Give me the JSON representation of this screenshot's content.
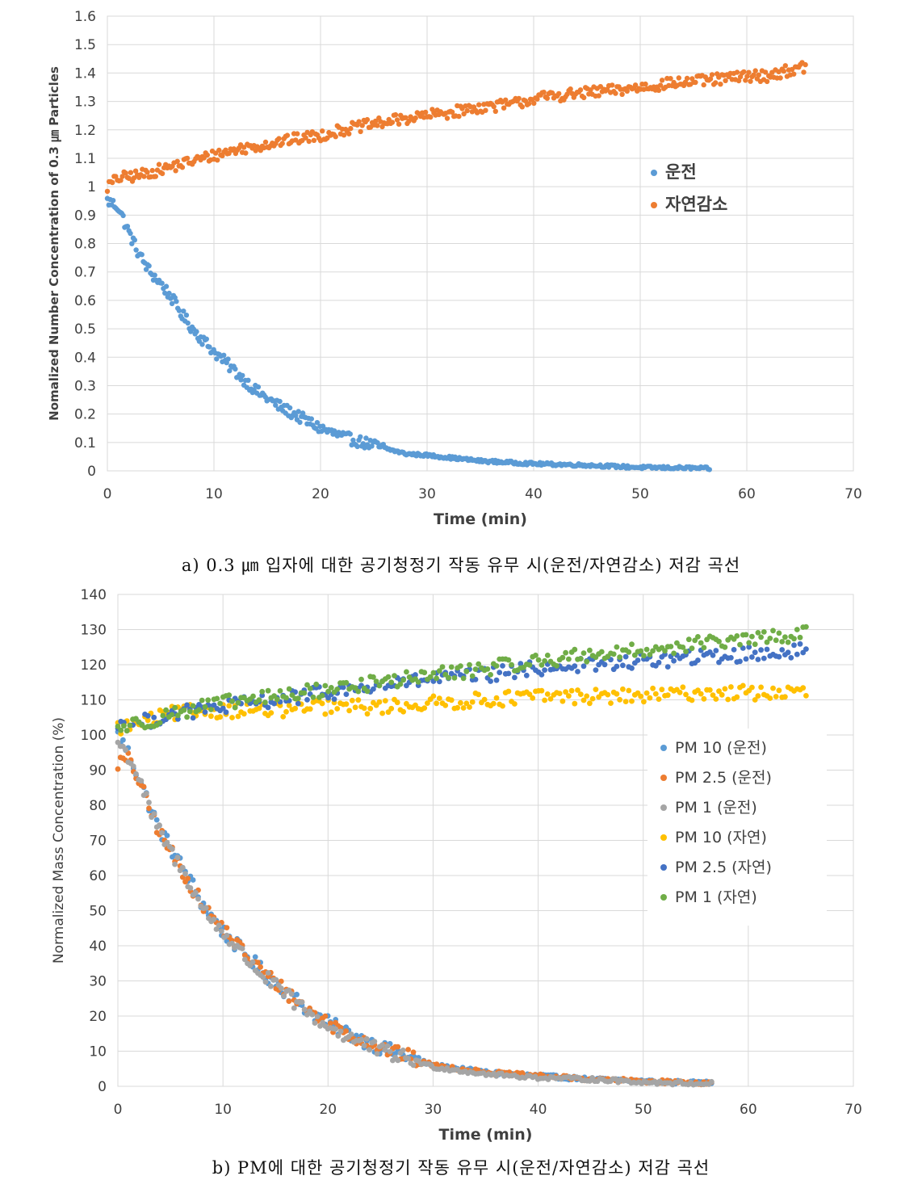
{
  "colors": {
    "series_a": [
      "#5b9bd5",
      "#ed7d31"
    ],
    "series_b": [
      "#5b9bd5",
      "#ed7d31",
      "#a5a5a5",
      "#ffc000",
      "#4472c4",
      "#70ad47"
    ],
    "grid": "#d9d9d9"
  },
  "captions": {
    "a": "a) 0.3 ㎛ 입자에 대한 공기청정기 작동 유무 시(운전/자연감소) 저감 곡선",
    "b": "b) PM에 대한 공기청정기 작동 유무 시(운전/자연감소) 저감 곡선"
  },
  "chart_data": [
    {
      "type": "scatter",
      "xlabel": "Time (min)",
      "ylabel": "Nomalized Number Concentration of 0.3 ㎛ Particles",
      "xlim": [
        0,
        70
      ],
      "ylim": [
        0,
        1.6
      ],
      "xticks": [
        "0",
        "10",
        "20",
        "30",
        "40",
        "50",
        "60",
        "70"
      ],
      "yticks": [
        "0",
        "0.1",
        "0.2",
        "0.3",
        "0.4",
        "0.5",
        "0.6",
        "0.7",
        "0.8",
        "0.9",
        "1",
        "1.1",
        "1.2",
        "1.3",
        "1.4",
        "1.5",
        "1.6"
      ],
      "grid": true,
      "legend_position": "right-upper",
      "series": [
        {
          "name": "운전",
          "x": [
            0,
            1,
            2,
            3,
            4,
            5,
            6,
            7,
            8,
            9,
            10,
            12,
            14,
            16,
            18,
            20,
            22,
            25,
            28,
            30,
            35,
            40,
            45,
            50,
            55,
            56.5
          ],
          "y": [
            0.95,
            0.93,
            0.84,
            0.76,
            0.7,
            0.66,
            0.61,
            0.55,
            0.5,
            0.46,
            0.42,
            0.35,
            0.28,
            0.23,
            0.19,
            0.15,
            0.12,
            0.09,
            0.06,
            0.055,
            0.035,
            0.025,
            0.02,
            0.012,
            0.01,
            0.008
          ]
        },
        {
          "name": "자연감소",
          "x": [
            0,
            1,
            3,
            5,
            7,
            10,
            12,
            15,
            18,
            20,
            22,
            25,
            28,
            30,
            32,
            35,
            38,
            40,
            42,
            45,
            48,
            50,
            52,
            55,
            58,
            60,
            62,
            64,
            65.5
          ],
          "y": [
            1.0,
            1.03,
            1.04,
            1.06,
            1.08,
            1.11,
            1.13,
            1.15,
            1.17,
            1.18,
            1.2,
            1.22,
            1.24,
            1.25,
            1.26,
            1.28,
            1.29,
            1.31,
            1.32,
            1.33,
            1.34,
            1.35,
            1.36,
            1.37,
            1.38,
            1.39,
            1.39,
            1.41,
            1.42
          ]
        }
      ]
    },
    {
      "type": "scatter",
      "xlabel": "Time (min)",
      "ylabel": "Normalized Mass Concentration (%)",
      "xlim": [
        0,
        70
      ],
      "ylim": [
        0,
        140
      ],
      "xticks": [
        "0",
        "10",
        "20",
        "30",
        "40",
        "50",
        "60",
        "70"
      ],
      "yticks": [
        "0",
        "10",
        "20",
        "30",
        "40",
        "50",
        "60",
        "70",
        "80",
        "90",
        "100",
        "110",
        "120",
        "130",
        "140"
      ],
      "grid": true,
      "legend_position": "right-middle",
      "series": [
        {
          "name": "PM 10 (운전)",
          "x": [
            0,
            1,
            2,
            3,
            4,
            5,
            6,
            7,
            8,
            9,
            10,
            12,
            14,
            16,
            18,
            20,
            22,
            25,
            28,
            30,
            35,
            40,
            45,
            50,
            55,
            56.5
          ],
          "y": [
            100,
            95,
            88,
            80,
            73,
            68,
            63,
            58,
            52,
            48,
            44,
            38,
            32,
            27,
            22,
            18,
            15,
            11,
            8,
            6,
            4,
            3,
            2,
            1.5,
            1,
            1
          ]
        },
        {
          "name": "PM 2.5 (운전)",
          "x": [
            0,
            1,
            2,
            3,
            4,
            5,
            6,
            7,
            8,
            9,
            10,
            12,
            14,
            16,
            18,
            20,
            22,
            25,
            28,
            30,
            35,
            40,
            45,
            50,
            55,
            56.5
          ],
          "y": [
            92,
            93,
            87,
            79,
            72,
            67,
            62,
            57,
            52,
            48,
            45,
            38,
            32,
            27,
            22,
            18,
            15,
            11,
            8,
            6,
            4,
            3,
            2,
            1.5,
            1,
            1
          ]
        },
        {
          "name": "PM 1 (운전)",
          "x": [
            0,
            1,
            2,
            3,
            4,
            5,
            6,
            7,
            8,
            9,
            10,
            12,
            14,
            16,
            18,
            20,
            22,
            25,
            28,
            30,
            35,
            40,
            45,
            50,
            55,
            56.5
          ],
          "y": [
            98,
            94,
            88,
            79,
            72,
            67,
            62,
            57,
            51,
            47,
            44,
            37,
            31,
            26,
            21,
            17,
            14,
            10,
            7.5,
            5.5,
            3.5,
            2.5,
            2,
            1.2,
            0.8,
            0.8
          ]
        },
        {
          "name": "PM 10 (자연)",
          "x": [
            0,
            3,
            5,
            8,
            10,
            15,
            20,
            25,
            30,
            35,
            40,
            45,
            50,
            55,
            60,
            65.5
          ],
          "y": [
            102,
            104,
            106,
            107,
            107,
            107,
            108,
            108,
            109,
            110,
            111,
            111,
            111,
            112,
            112,
            112
          ]
        },
        {
          "name": "PM 2.5 (자연)",
          "x": [
            0,
            3,
            5,
            8,
            10,
            15,
            20,
            25,
            30,
            35,
            40,
            45,
            50,
            55,
            60,
            65.5
          ],
          "y": [
            103,
            104,
            106,
            107,
            108,
            110,
            112,
            114,
            116,
            117,
            119,
            120,
            121,
            122,
            123,
            124
          ]
        },
        {
          "name": "PM 1 (자연)",
          "x": [
            0,
            3,
            5,
            8,
            10,
            15,
            20,
            25,
            30,
            35,
            40,
            45,
            50,
            55,
            60,
            65.5
          ],
          "y": [
            102,
            104,
            106,
            108,
            109,
            111,
            113,
            115,
            117,
            119,
            121,
            123,
            124,
            126,
            127,
            129
          ]
        }
      ]
    }
  ]
}
